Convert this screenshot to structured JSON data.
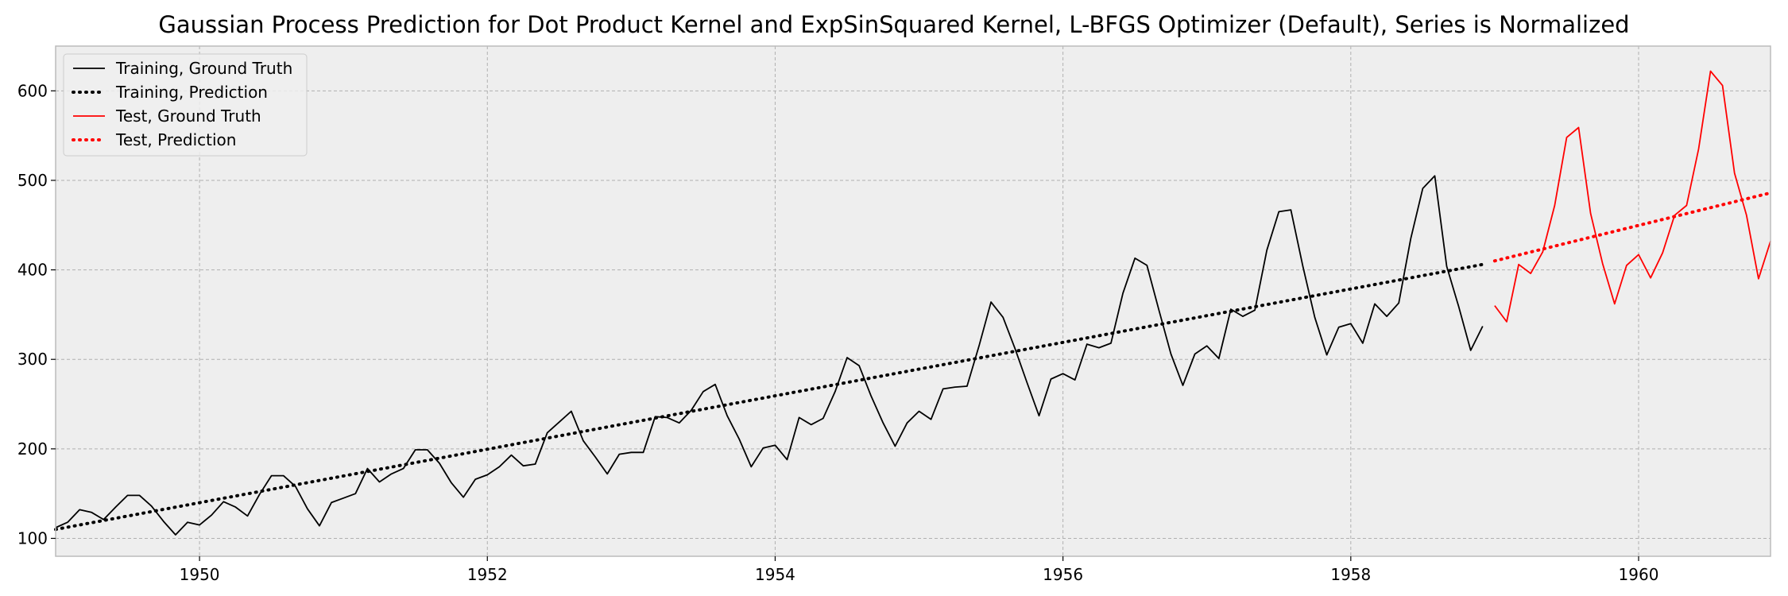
{
  "chart_data": {
    "type": "line",
    "title": "Gaussian Process Prediction for Dot Product Kernel and ExpSinSquared Kernel, L-BFGS Optimizer (Default), Series is Normalized",
    "xlabel": "",
    "ylabel": "",
    "x_unit": "months since 1949-01",
    "xlim": [
      "1949-01",
      "1960-12"
    ],
    "ylim": [
      80,
      650
    ],
    "x_ticks": [
      "1950",
      "1952",
      "1954",
      "1956",
      "1958",
      "1960"
    ],
    "y_ticks": [
      "100",
      "200",
      "300",
      "400",
      "500",
      "600"
    ],
    "grid": true,
    "legend_position": "top-left",
    "series": [
      {
        "name": "Training, Ground Truth",
        "color": "#000000",
        "style": "solid",
        "x_start": "1949-01",
        "values": [
          112,
          118,
          132,
          129,
          121,
          135,
          148,
          148,
          136,
          119,
          104,
          118,
          115,
          126,
          141,
          135,
          125,
          149,
          170,
          170,
          158,
          133,
          114,
          140,
          145,
          150,
          178,
          163,
          172,
          178,
          199,
          199,
          184,
          162,
          146,
          166,
          171,
          180,
          193,
          181,
          183,
          218,
          230,
          242,
          209,
          191,
          172,
          194,
          196,
          196,
          236,
          235,
          229,
          243,
          264,
          272,
          237,
          211,
          180,
          201,
          204,
          188,
          235,
          227,
          234,
          264,
          302,
          293,
          259,
          229,
          203,
          229,
          242,
          233,
          267,
          269,
          270,
          315,
          364,
          347,
          312,
          274,
          237,
          278,
          284,
          277,
          317,
          313,
          318,
          374,
          413,
          405,
          355,
          306,
          271,
          306,
          315,
          301,
          356,
          348,
          355,
          422,
          465,
          467,
          404,
          347,
          305,
          336,
          340,
          318,
          362,
          348,
          363,
          435,
          491,
          505,
          404,
          359,
          310,
          337
        ]
      },
      {
        "name": "Training, Prediction",
        "color": "#000000",
        "style": "dotted",
        "x_range": [
          "1949-01",
          "1958-12"
        ],
        "y_range": [
          110,
          406
        ]
      },
      {
        "name": "Test, Ground Truth",
        "color": "#ff0000",
        "style": "solid",
        "x_start": "1959-01",
        "values": [
          360,
          342,
          406,
          396,
          420,
          472,
          548,
          559,
          463,
          407,
          362,
          405,
          417,
          391,
          419,
          461,
          472,
          535,
          622,
          606,
          508,
          461,
          390,
          432
        ]
      },
      {
        "name": "Test, Prediction",
        "color": "#ff0000",
        "style": "dotted",
        "x_range": [
          "1959-01",
          "1960-12"
        ],
        "y_range": [
          410,
          486
        ]
      }
    ]
  }
}
